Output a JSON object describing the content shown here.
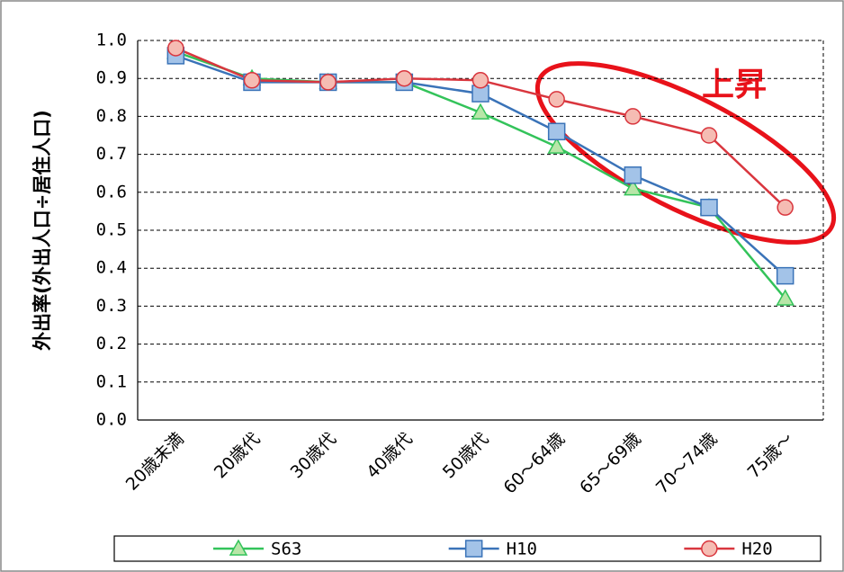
{
  "chart_data": {
    "type": "line",
    "y_label": "外出率(外出人口÷居住人口)",
    "annotation": "上昇",
    "categories": [
      "20歳未満",
      "20歳代",
      "30歳代",
      "40歳代",
      "50歳代",
      "60～64歳",
      "65～69歳",
      "70～74歳",
      "75歳～"
    ],
    "series": [
      {
        "name": "S63",
        "color": "#33c35a",
        "marker": "triangle",
        "marker_fill": "#b8e6a8",
        "values": [
          0.97,
          0.9,
          0.89,
          0.89,
          0.81,
          0.72,
          0.61,
          0.56,
          0.32
        ]
      },
      {
        "name": "H10",
        "color": "#3a73b8",
        "marker": "square",
        "marker_fill": "#a3c3e8",
        "values": [
          0.96,
          0.89,
          0.89,
          0.89,
          0.86,
          0.76,
          0.645,
          0.56,
          0.38
        ]
      },
      {
        "name": "H20",
        "color": "#d9363e",
        "marker": "circle",
        "marker_fill": "#f5bcb3",
        "values": [
          0.98,
          0.895,
          0.89,
          0.9,
          0.895,
          0.845,
          0.8,
          0.75,
          0.56
        ]
      }
    ],
    "ylim": [
      0,
      1
    ],
    "yticks": [
      {
        "value": 0,
        "label": "0.0"
      },
      0.1,
      0.2,
      0.3,
      0.4,
      0.5,
      0.6,
      0.7,
      0.8,
      0.9,
      {
        "value": 1,
        "label": "1.0"
      }
    ],
    "grid": true,
    "legend": "bottom"
  }
}
